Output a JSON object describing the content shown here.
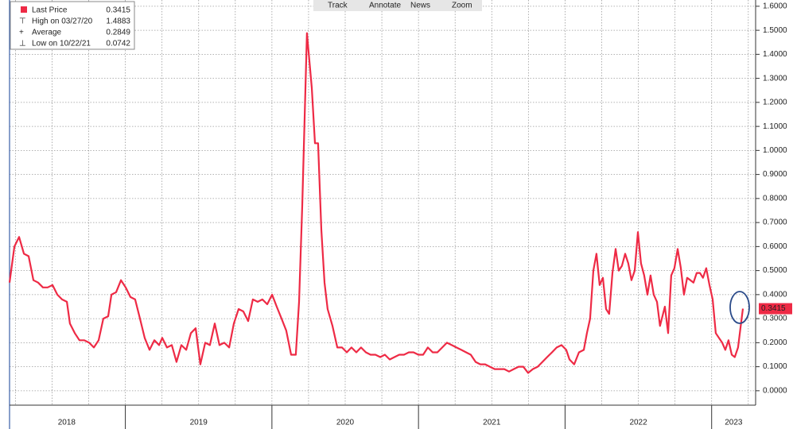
{
  "chart_data": {
    "type": "line",
    "toolbar": [
      "Track",
      "Annotate",
      "News",
      "Zoom"
    ],
    "legend": [
      {
        "label": "High on 03/27/20",
        "value": 1.4883
      },
      {
        "label": "Average",
        "value": 0.2849
      },
      {
        "label": "Low on 10/22/21",
        "value": 0.0742
      }
    ],
    "x": [
      2018.21,
      2018.243,
      2018.275,
      2018.308,
      2018.34,
      2018.373,
      2018.405,
      2018.438,
      2018.47,
      2018.503,
      2018.536,
      2018.568,
      2018.601,
      2018.622,
      2018.655,
      2018.687,
      2018.72,
      2018.753,
      2018.785,
      2018.818,
      2018.85,
      2018.883,
      2018.905,
      2018.937,
      2018.97,
      2019.002,
      2019.035,
      2019.067,
      2019.1,
      2019.132,
      2019.165,
      2019.198,
      2019.23,
      2019.252,
      2019.284,
      2019.317,
      2019.349,
      2019.382,
      2019.415,
      2019.447,
      2019.48,
      2019.512,
      2019.545,
      2019.577,
      2019.61,
      2019.642,
      2019.675,
      2019.708,
      2019.74,
      2019.773,
      2019.805,
      2019.838,
      2019.87,
      2019.903,
      2019.935,
      2019.968,
      2020.001,
      2020.033,
      2020.066,
      2020.098,
      2020.131,
      2020.163,
      2020.185,
      2020.207,
      2020.239,
      2020.272,
      2020.294,
      2020.315,
      2020.337,
      2020.359,
      2020.38,
      2020.413,
      2020.446,
      2020.478,
      2020.511,
      2020.543,
      2020.576,
      2020.608,
      2020.641,
      2020.673,
      2020.706,
      2020.739,
      2020.771,
      2020.804,
      2020.836,
      2020.869,
      2020.901,
      2020.934,
      2020.966,
      2020.999,
      2021.032,
      2021.064,
      2021.097,
      2021.129,
      2021.162,
      2021.194,
      2021.227,
      2021.259,
      2021.292,
      2021.325,
      2021.357,
      2021.39,
      2021.422,
      2021.455,
      2021.487,
      2021.52,
      2021.552,
      2021.585,
      2021.618,
      2021.65,
      2021.683,
      2021.715,
      2021.748,
      2021.78,
      2021.813,
      2021.845,
      2021.878,
      2021.911,
      2021.943,
      2021.976,
      2022.008,
      2022.03,
      2022.062,
      2022.095,
      2022.128,
      2022.149,
      2022.171,
      2022.193,
      2022.214,
      2022.236,
      2022.258,
      2022.28,
      2022.301,
      2022.323,
      2022.345,
      2022.366,
      2022.388,
      2022.41,
      2022.431,
      2022.453,
      2022.475,
      2022.497,
      2022.518,
      2022.54,
      2022.562,
      2022.583,
      2022.605,
      2022.627,
      2022.648,
      2022.681,
      2022.703,
      2022.724,
      2022.746,
      2022.768,
      2022.79,
      2022.811,
      2022.833,
      2022.855,
      2022.876,
      2022.898,
      2022.92,
      2022.941,
      2022.963,
      2022.985,
      2023.007,
      2023.028,
      2023.05,
      2023.072,
      2023.093,
      2023.115,
      2023.137,
      2023.158,
      2023.18,
      2023.213
    ],
    "series": [
      {
        "name": "Last Price",
        "color": "#ee2a45",
        "values": [
          0.45,
          0.6,
          0.64,
          0.57,
          0.56,
          0.46,
          0.45,
          0.43,
          0.43,
          0.44,
          0.4,
          0.38,
          0.37,
          0.28,
          0.24,
          0.21,
          0.21,
          0.2,
          0.18,
          0.21,
          0.3,
          0.31,
          0.4,
          0.41,
          0.46,
          0.43,
          0.39,
          0.38,
          0.3,
          0.22,
          0.17,
          0.21,
          0.19,
          0.22,
          0.18,
          0.19,
          0.12,
          0.19,
          0.17,
          0.24,
          0.26,
          0.11,
          0.2,
          0.19,
          0.28,
          0.19,
          0.2,
          0.18,
          0.28,
          0.34,
          0.33,
          0.29,
          0.38,
          0.37,
          0.38,
          0.36,
          0.4,
          0.35,
          0.3,
          0.25,
          0.15,
          0.15,
          0.37,
          0.77,
          1.4883,
          1.26,
          1.03,
          1.03,
          0.67,
          0.45,
          0.34,
          0.27,
          0.18,
          0.18,
          0.16,
          0.18,
          0.16,
          0.18,
          0.16,
          0.15,
          0.15,
          0.14,
          0.15,
          0.13,
          0.14,
          0.15,
          0.15,
          0.16,
          0.16,
          0.15,
          0.15,
          0.18,
          0.16,
          0.16,
          0.18,
          0.2,
          0.19,
          0.18,
          0.17,
          0.16,
          0.15,
          0.12,
          0.11,
          0.11,
          0.1,
          0.09,
          0.09,
          0.09,
          0.08,
          0.09,
          0.1,
          0.1,
          0.0742,
          0.09,
          0.1,
          0.12,
          0.14,
          0.16,
          0.18,
          0.19,
          0.17,
          0.13,
          0.11,
          0.16,
          0.17,
          0.24,
          0.3,
          0.5,
          0.57,
          0.44,
          0.47,
          0.34,
          0.32,
          0.49,
          0.59,
          0.5,
          0.52,
          0.57,
          0.53,
          0.46,
          0.5,
          0.66,
          0.53,
          0.48,
          0.4,
          0.48,
          0.4,
          0.37,
          0.27,
          0.35,
          0.24,
          0.48,
          0.51,
          0.59,
          0.51,
          0.4,
          0.47,
          0.46,
          0.45,
          0.49,
          0.49,
          0.47,
          0.51,
          0.44,
          0.38,
          0.24,
          0.22,
          0.2,
          0.17,
          0.21,
          0.15,
          0.14,
          0.18,
          0.3415
        ]
      }
    ],
    "xlim": [
      2018.21,
      2023.3
    ],
    "xticks": [
      {
        "value": 2018.6,
        "label": "2018"
      },
      {
        "value": 2019.5,
        "label": "2019"
      },
      {
        "value": 2020.5,
        "label": "2020"
      },
      {
        "value": 2021.5,
        "label": "2021"
      },
      {
        "value": 2022.5,
        "label": "2022"
      },
      {
        "value": 2023.15,
        "label": "2023"
      }
    ],
    "xgrid": [
      2018.25,
      2018.5,
      2018.75,
      2019,
      2019.25,
      2019.5,
      2019.75,
      2020,
      2020.25,
      2020.5,
      2020.75,
      2021,
      2021.25,
      2021.5,
      2021.75,
      2022,
      2022.25,
      2022.5,
      2022.75,
      2023,
      2023.25
    ],
    "ylim": [
      -0.06,
      1.626
    ],
    "yticks": [
      {
        "value": 0,
        "label": "0.0000"
      },
      {
        "value": 0.1,
        "label": "0.1000"
      },
      {
        "value": 0.2,
        "label": "0.2000"
      },
      {
        "value": 0.3,
        "label": "0.3000"
      },
      {
        "value": 0.4,
        "label": "0.4000"
      },
      {
        "value": 0.5,
        "label": "0.5000"
      },
      {
        "value": 0.6,
        "label": "0.6000"
      },
      {
        "value": 0.7,
        "label": "0.7000"
      },
      {
        "value": 0.8,
        "label": "0.8000"
      },
      {
        "value": 0.9,
        "label": "0.9000"
      },
      {
        "value": 1.0,
        "label": "1.0000"
      },
      {
        "value": 1.1,
        "label": "1.1000"
      },
      {
        "value": 1.2,
        "label": "1.2000"
      },
      {
        "value": 1.3,
        "label": "1.3000"
      },
      {
        "value": 1.4,
        "label": "1.4000"
      },
      {
        "value": 1.5,
        "label": "1.5000"
      },
      {
        "value": 1.6,
        "label": "1.6000"
      }
    ],
    "grid": true
  }
}
